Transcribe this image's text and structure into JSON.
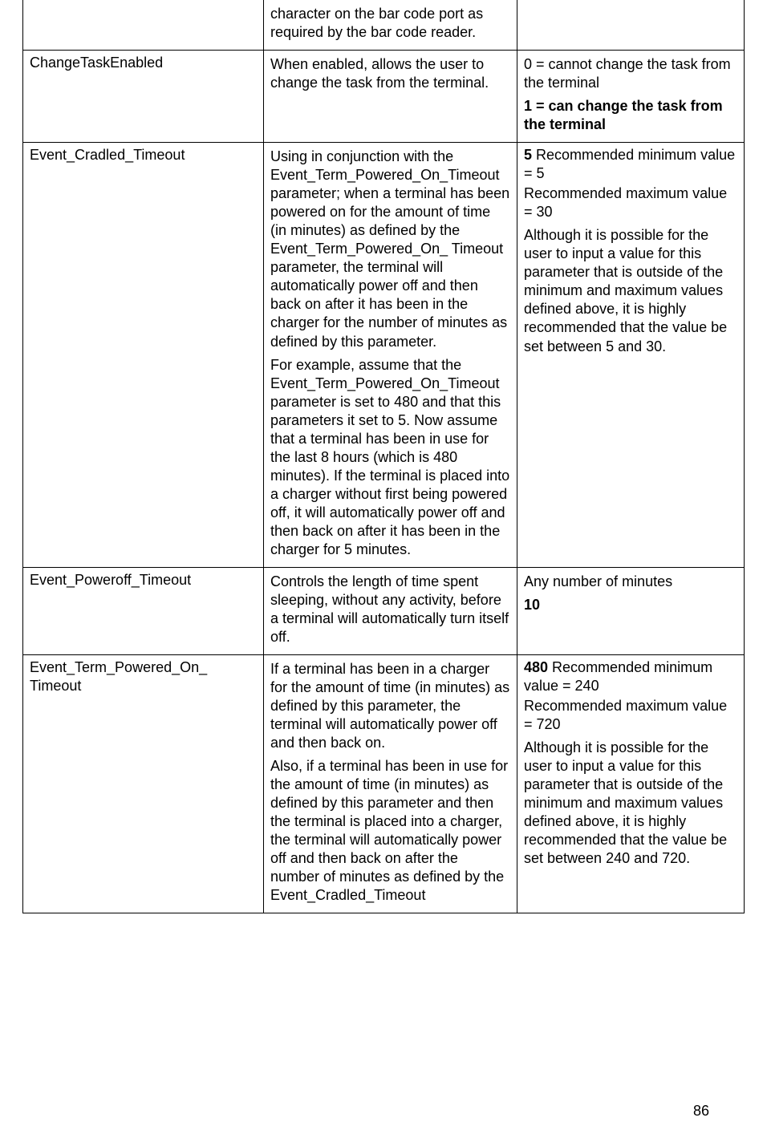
{
  "page_number": "86",
  "rows": [
    {
      "c1": "",
      "c2": [
        "character on the bar code port as required by the bar code reader."
      ],
      "c3": []
    },
    {
      "c1": "ChangeTaskEnabled",
      "c2": [
        "When enabled, allows the user to change the task from the terminal."
      ],
      "c3_plain": "0 = cannot change the task from the terminal",
      "c3_bold": "1 = can change the task from the terminal"
    },
    {
      "c1": "Event_Cradled_Timeout",
      "c2": [
        "Using in conjunction with the Event_Term_Powered_On_Timeout parameter; when a terminal has been powered on for the amount of time (in minutes) as defined by the Event_Term_Powered_On_ Timeout parameter, the terminal will automatically power off and then back on after it has been in the charger for the number of minutes as defined by this parameter.",
        "For example, assume that the Event_Term_Powered_On_Timeout parameter is set to 480 and that this parameters it set to 5. Now assume that a terminal has been in use for the last 8 hours (which is 480 minutes). If the terminal is placed into a charger without first being powered off, it will automatically power off and then back on after it has been in the charger for 5 minutes."
      ],
      "c3_boldline": "5",
      "c3_paras": [
        " Recommended minimum value = 5",
        "Recommended maximum value = 30",
        "Although it is possible for the user to input a value for this parameter that is outside of the minimum and maximum values defined above, it is highly recommended that the value be set between 5 and 30."
      ]
    },
    {
      "c1": "Event_Poweroff_Timeout",
      "c2": [
        "Controls the length of time spent sleeping, without any activity, before a terminal will automatically turn itself off."
      ],
      "c3_lines": [
        {
          "text": "Any number of minutes",
          "bold": false
        },
        {
          "text": "10",
          "bold": true
        }
      ]
    },
    {
      "c1": "Event_Term_Powered_On_ Timeout",
      "c2": [
        "If a terminal has been in a charger for the amount of time (in minutes) as defined by this parameter, the terminal will automatically power off and then back on.",
        "Also, if a terminal has been in use for the amount of time (in minutes) as defined by this parameter and then the terminal is placed into a charger, the terminal will automatically power off and then back on after the number of minutes as defined by the Event_Cradled_Timeout"
      ],
      "c3_boldline": "480",
      "c3_paras": [
        " Recommended minimum value = 240",
        "Recommended maximum value = 720",
        "Although it is possible for the user to input a value for this parameter that is outside of the minimum and maximum values defined above, it is highly recommended that the value be set between 240 and 720."
      ]
    }
  ]
}
